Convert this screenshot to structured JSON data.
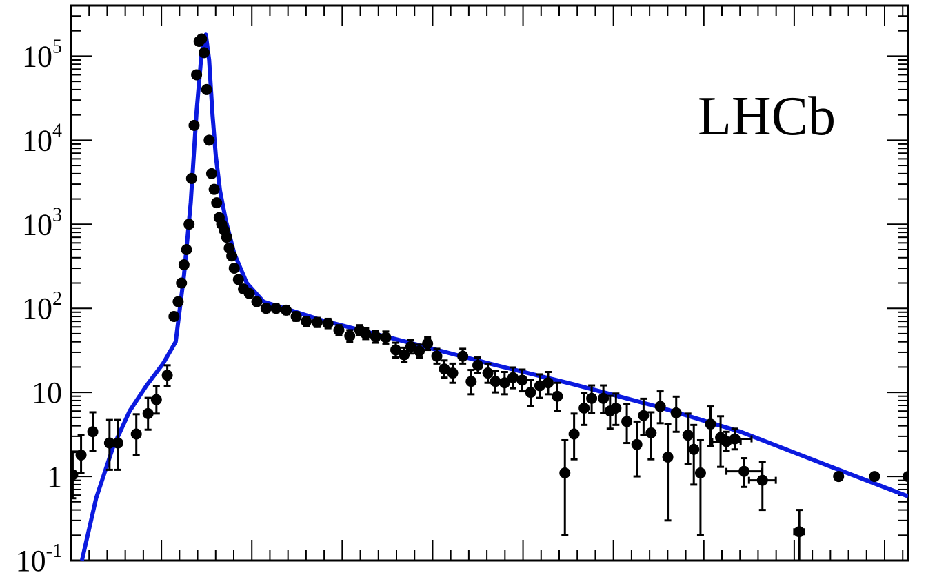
{
  "chart_data": {
    "type": "scatter",
    "title": "",
    "xlabel": "",
    "ylabel": "",
    "yscale": "log",
    "xlim": [
      0,
      100
    ],
    "ylim": [
      0.1,
      400000
    ],
    "annotation": "LHCb",
    "y_tick_labels": [
      {
        "value": 0.1,
        "base": "10",
        "exp": "-1"
      },
      {
        "value": 1,
        "base": "1",
        "exp": ""
      },
      {
        "value": 10,
        "base": "10",
        "exp": ""
      },
      {
        "value": 100,
        "base": "10",
        "exp": "2"
      },
      {
        "value": 1000,
        "base": "10",
        "exp": "3"
      },
      {
        "value": 10000,
        "base": "10",
        "exp": "4"
      },
      {
        "value": 100000,
        "base": "10",
        "exp": "5"
      }
    ],
    "x_major_ticks": [
      10.8,
      21.6,
      32.4,
      43.2,
      54.0,
      64.8,
      75.6,
      86.4,
      97.2
    ],
    "grid": false,
    "colors": {
      "points": "#000000",
      "fit": "#0b1adf"
    },
    "series": [
      {
        "kind": "points",
        "x": [
          0.2,
          1.2,
          2.6,
          4.6,
          5.6,
          7.8,
          9.2,
          10.2,
          11.5,
          12.3,
          12.8,
          13.2,
          13.5,
          13.8,
          14.1,
          14.4,
          14.7,
          15.0,
          15.3,
          15.6,
          15.9,
          16.2,
          16.5,
          16.8,
          17.1,
          17.4,
          17.7,
          18.0,
          18.3,
          18.6,
          18.9,
          19.2,
          19.5,
          20.0,
          20.6,
          21.3,
          22.2,
          23.3,
          24.5,
          25.7,
          26.9,
          28.1,
          29.4,
          30.7,
          32.0,
          33.3,
          34.5,
          35.2,
          36.4,
          37.6,
          38.8,
          39.8,
          40.6,
          41.6,
          42.6,
          43.7,
          44.6,
          45.6,
          46.8,
          47.8,
          48.6,
          49.8,
          50.7,
          51.8,
          52.8,
          53.9,
          54.9,
          56.0,
          57.0,
          58.1,
          59.0,
          60.1,
          61.3,
          62.2,
          63.6,
          64.4,
          65.1,
          66.4,
          67.6,
          68.4,
          69.3,
          70.4,
          71.3,
          72.3,
          73.7,
          74.4,
          75.2,
          76.4,
          77.6,
          78.3,
          79.3,
          80.4,
          82.6,
          87.0,
          91.7,
          96.0,
          100.0
        ],
        "y": [
          1.05,
          1.8,
          3.4,
          2.5,
          2.5,
          3.2,
          5.6,
          8.2,
          16,
          80,
          120,
          200,
          330,
          500,
          1000,
          3500,
          15000,
          60000,
          150000,
          160000,
          110000,
          40000,
          10000,
          4000,
          2600,
          1800,
          1200,
          1000,
          850,
          700,
          520,
          420,
          300,
          220,
          170,
          150,
          120,
          100,
          100,
          95,
          80,
          70,
          68,
          66,
          55,
          47,
          55,
          50,
          46,
          45,
          32,
          28,
          35,
          31,
          38,
          27,
          19,
          17,
          27,
          13.5,
          21,
          17,
          13.5,
          13,
          15,
          14,
          10,
          12,
          13,
          9,
          1.1,
          3.2,
          6.5,
          8.5,
          8.5,
          6,
          6.5,
          4.5,
          2.4,
          5.3,
          3.3,
          6.8,
          1.7,
          5.7,
          3.1,
          2.1,
          1.1,
          4.2,
          2.9,
          2.6,
          2.8,
          1.15,
          0.9,
          0.22,
          1.0,
          1.0,
          1.0
        ],
        "y_err_lo": [
          0.5,
          0.7,
          1.4,
          1.3,
          1.3,
          1.4,
          2.0,
          2.6,
          4,
          8,
          10,
          13,
          17,
          22,
          30,
          60,
          120,
          250,
          400,
          400,
          330,
          200,
          100,
          60,
          50,
          42,
          35,
          32,
          29,
          26,
          23,
          20,
          17,
          15,
          13,
          12,
          11,
          10,
          10,
          10,
          9,
          8,
          8,
          8,
          7,
          7,
          7,
          7,
          7,
          7,
          6,
          5,
          6,
          5,
          6,
          5,
          4,
          4,
          5,
          4,
          4,
          4,
          3.5,
          3.5,
          3.8,
          3.7,
          3.1,
          3.4,
          3.5,
          3,
          0.9,
          1.6,
          2.4,
          2.8,
          2.8,
          2.3,
          2.4,
          2.0,
          1.4,
          2.2,
          1.7,
          2.5,
          1.4,
          2.3,
          1.7,
          1.3,
          0.9,
          1.9,
          1.6,
          0.6,
          0.7,
          0.4,
          0.5,
          0.12,
          0,
          0,
          0
        ],
        "y_err_hi": [
          0.9,
          1.3,
          2.4,
          2.2,
          2.2,
          2.3,
          3.0,
          3.6,
          5,
          9,
          11,
          14,
          18,
          23,
          31,
          61,
          121,
          251,
          401,
          401,
          331,
          201,
          101,
          61,
          51,
          43,
          36,
          33,
          30,
          27,
          24,
          21,
          18,
          16,
          14,
          13,
          12,
          11,
          11,
          11,
          10,
          9,
          9,
          9,
          8,
          8,
          8,
          8,
          8,
          8,
          7,
          6,
          7,
          6,
          7,
          6,
          5,
          5,
          6,
          5,
          5,
          5,
          4.5,
          4.5,
          4.8,
          4.7,
          4.1,
          4.4,
          4.5,
          4,
          1.6,
          2.4,
          3.3,
          3.6,
          3.6,
          3.1,
          3.2,
          2.8,
          2.1,
          3.1,
          2.5,
          3.5,
          2.5,
          3.2,
          2.5,
          2.0,
          1.6,
          2.6,
          2.3,
          0.8,
          0.9,
          0.5,
          0.6,
          0.18,
          0,
          0,
          0
        ],
        "x_err": [
          0,
          0,
          0,
          0,
          0,
          0,
          0,
          0,
          0,
          0,
          0,
          0,
          0,
          0,
          0,
          0,
          0,
          0,
          0,
          0,
          0,
          0,
          0,
          0,
          0,
          0,
          0,
          0,
          0,
          0,
          0,
          0,
          0,
          0,
          0,
          0,
          0,
          0,
          0,
          0,
          0,
          0,
          0,
          0,
          0,
          0,
          0,
          0,
          0,
          0,
          0,
          0,
          0,
          0,
          0,
          0,
          0,
          0,
          0,
          0,
          0,
          0,
          0,
          0,
          0,
          0,
          0,
          0,
          0,
          0,
          0,
          0,
          0,
          0,
          0,
          0,
          0,
          0,
          0,
          0,
          0,
          0,
          0,
          0,
          0,
          0,
          0,
          0,
          0,
          1.7,
          2.0,
          2.1,
          1.6,
          0.6,
          0,
          0,
          0
        ]
      },
      {
        "kind": "fit",
        "x": [
          1.3,
          3.0,
          5.0,
          7.0,
          9.0,
          11.0,
          12.5,
          13.5,
          14.3,
          15.0,
          15.6,
          16.1,
          16.5,
          16.9,
          17.3,
          17.8,
          18.5,
          19.5,
          21.0,
          23.0,
          25.5,
          30.0,
          40.0,
          50.0,
          60.0,
          70.0,
          80.0,
          90.0,
          100.0
        ],
        "y": [
          0.1,
          0.55,
          2.2,
          6.0,
          12,
          22,
          40,
          250,
          1800,
          22000,
          110000,
          180000,
          90000,
          20000,
          6500,
          2500,
          1100,
          450,
          200,
          120,
          100,
          72,
          40,
          22,
          12.5,
          6.8,
          3.4,
          1.4,
          0.58
        ]
      }
    ]
  }
}
